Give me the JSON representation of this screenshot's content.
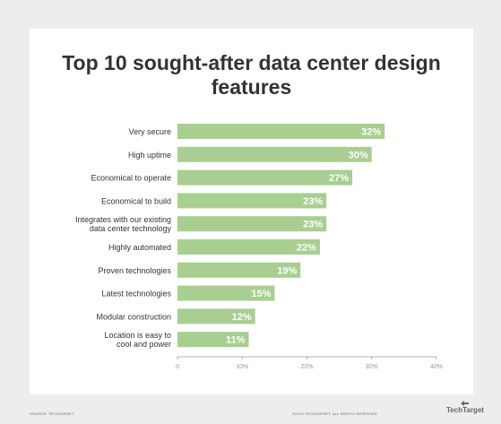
{
  "chart_data": {
    "type": "bar",
    "orientation": "horizontal",
    "title": "Top 10 sought-after data center design features",
    "categories": [
      [
        "Very secure"
      ],
      [
        "High uptime"
      ],
      [
        "Economical to operate"
      ],
      [
        "Economical to build"
      ],
      [
        "Integrates with our existing",
        "data center technology"
      ],
      [
        "Highly automated"
      ],
      [
        "Proven technologies"
      ],
      [
        "Latest technologies"
      ],
      [
        "Modular construction"
      ],
      [
        "Location is easy to",
        "cool and power"
      ]
    ],
    "values": [
      32,
      30,
      27,
      23,
      23,
      22,
      19,
      15,
      12,
      11
    ],
    "value_labels": [
      "32%",
      "30%",
      "27%",
      "23%",
      "23%",
      "22%",
      "19%",
      "15%",
      "12%",
      "11%"
    ],
    "xlim": [
      0,
      40
    ],
    "xticks": [
      0,
      10,
      20,
      30,
      40
    ],
    "xtick_labels": [
      "0",
      "10%",
      "20%",
      "30%",
      "40%"
    ],
    "grid": false,
    "colors": {
      "bar": "#a8cf91",
      "label": "#ffffff",
      "text": "#333333",
      "tick": "#999999",
      "axis": "#999999"
    }
  },
  "footer": {
    "source": "SOURCE: TECHTARGET",
    "copyright": "©2019 TECHTARGET. ALL RIGHTS RESERVED",
    "logo": "TechTarget"
  }
}
